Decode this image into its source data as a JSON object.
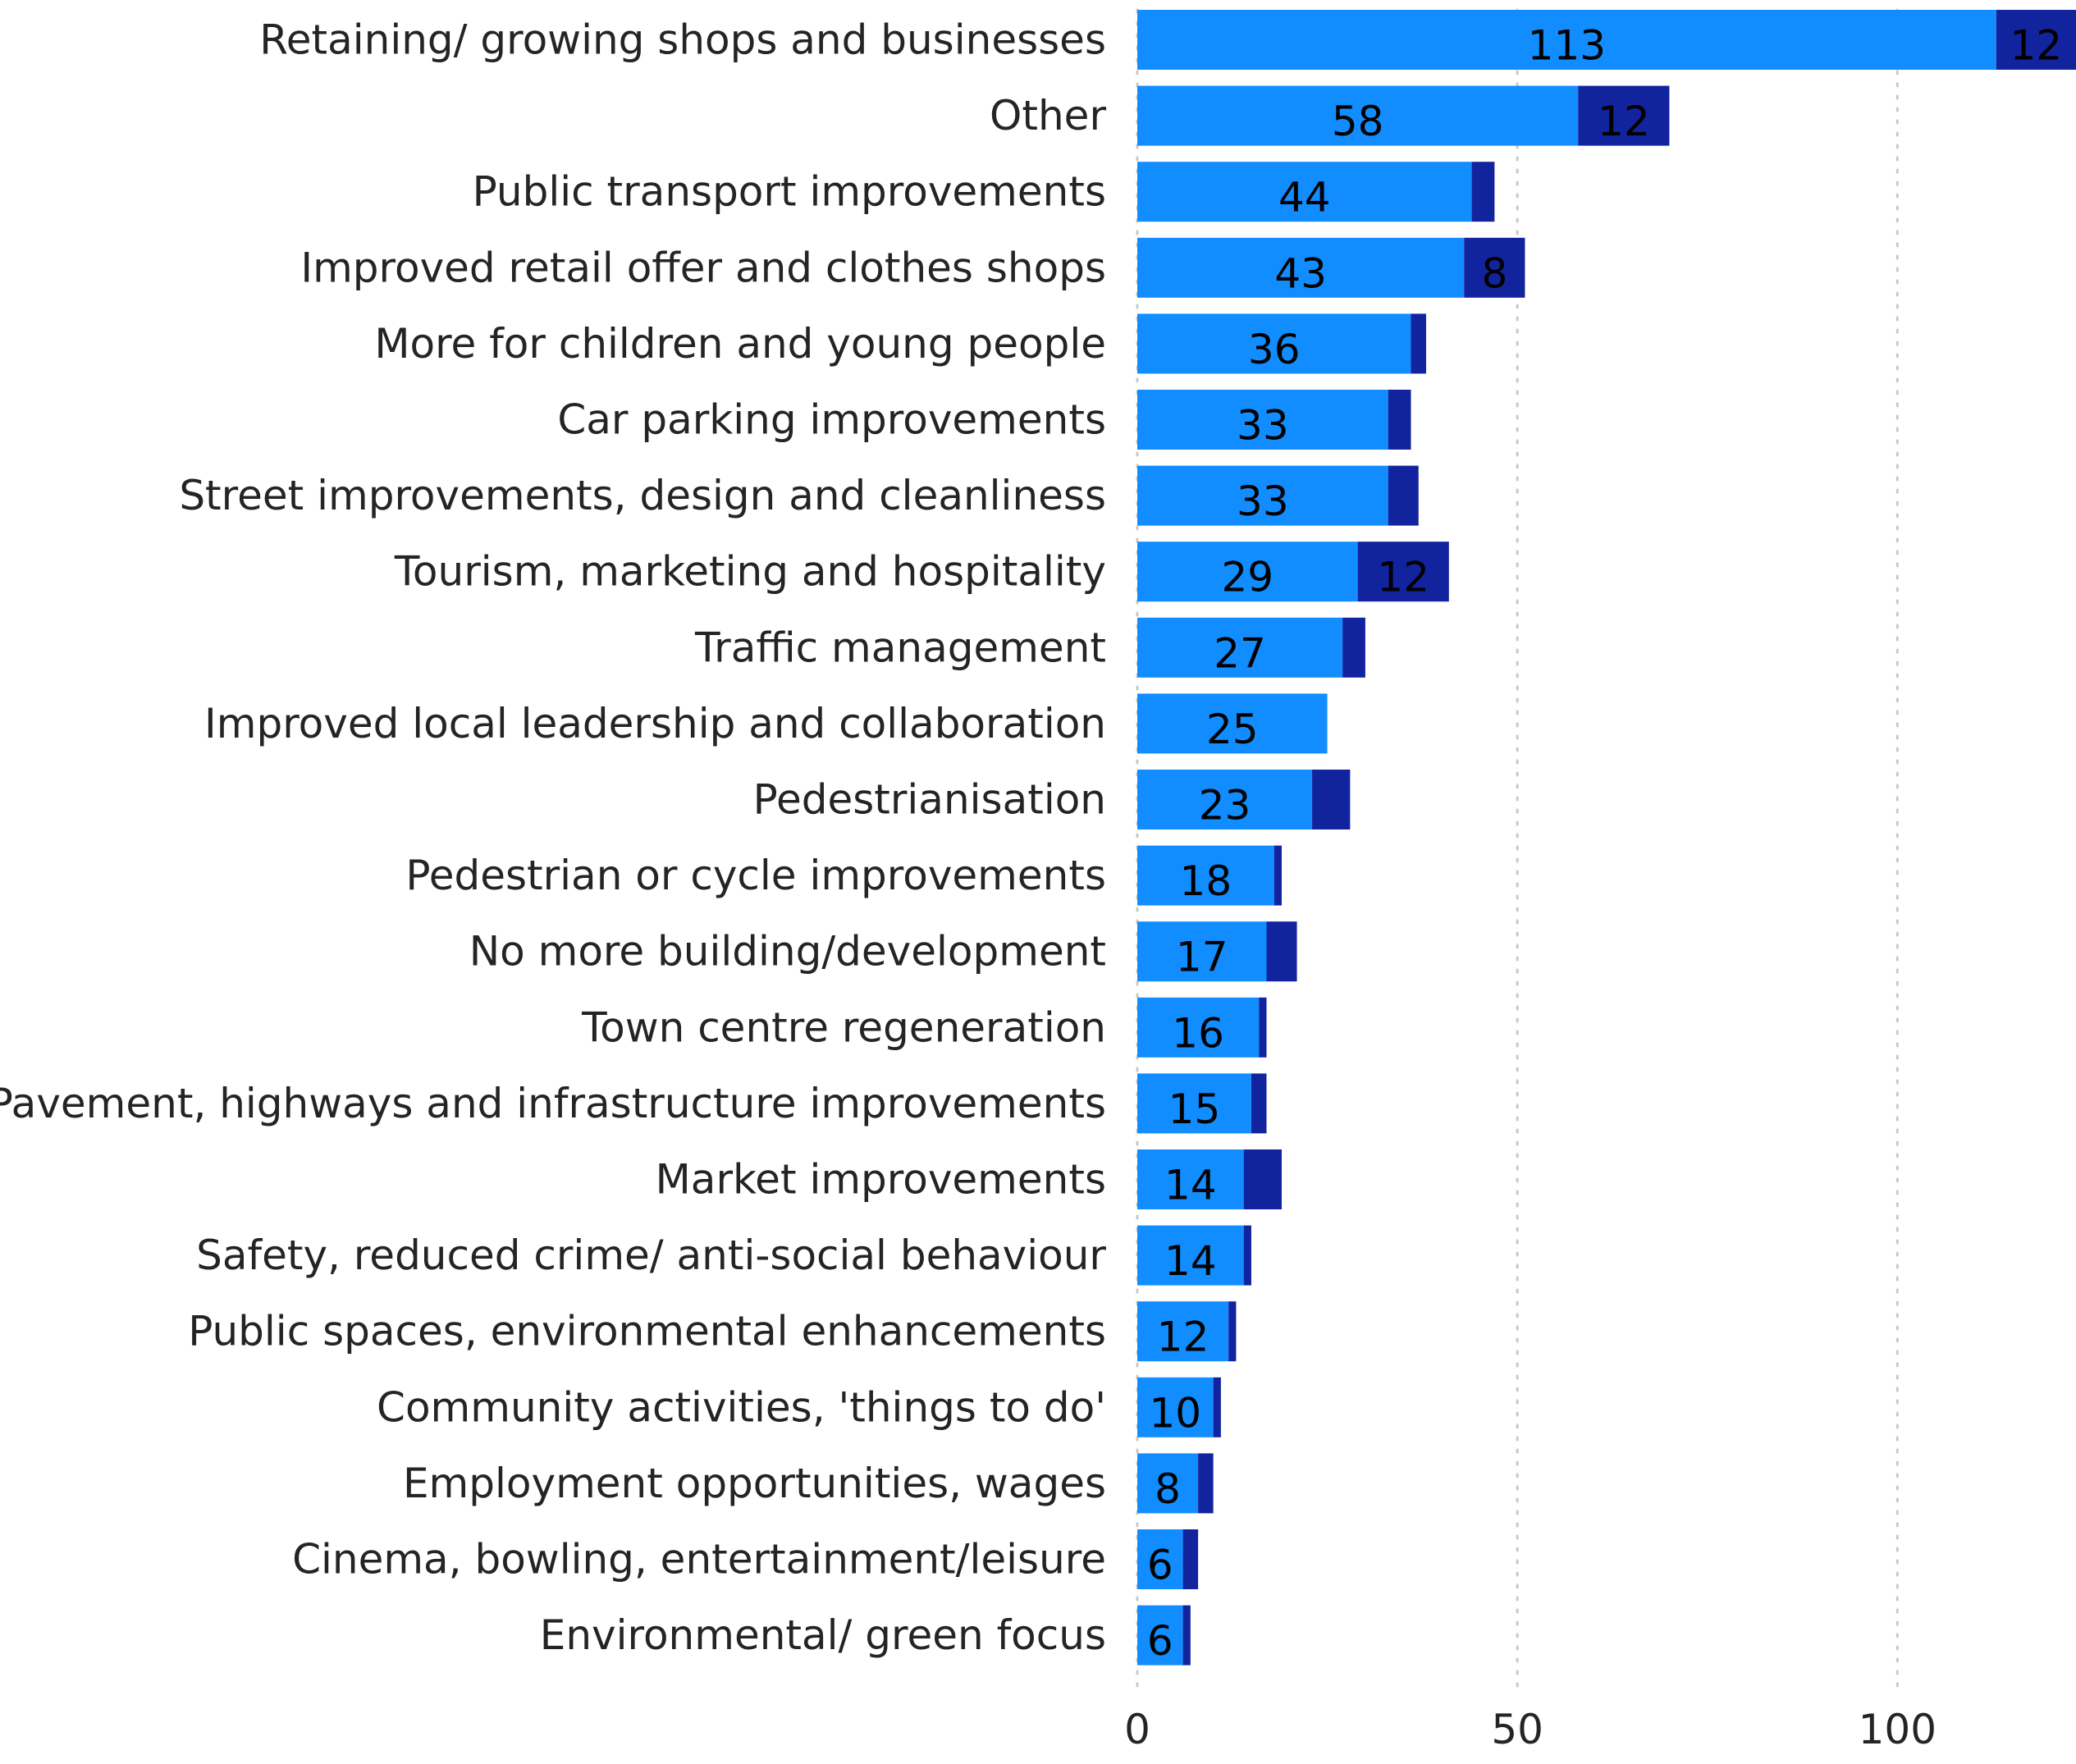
{
  "chart_data": {
    "type": "bar",
    "orientation": "horizontal",
    "stacked": true,
    "categories": [
      "Retaining/ growing shops and businesses",
      "Other",
      "Public transport improvements",
      "Improved retail offer and clothes shops",
      "More for children and young people",
      "Car parking improvements",
      "Street improvements, design and cleanliness",
      "Tourism, marketing and hospitality",
      "Traffic management",
      "Improved local leadership and collaboration",
      "Pedestrianisation",
      "Pedestrian or cycle improvements",
      "No more building/development",
      "Town centre regeneration",
      "Pavement, highways and infrastructure improvements",
      "Market improvements",
      "Safety, reduced crime/ anti-social behaviour",
      "Public spaces, environmental enhancements",
      "Community activities, 'things to do'",
      "Employment opportunities, wages",
      "Cinema, bowling, entertainment/leisure",
      "Environmental/ green focus"
    ],
    "series": [
      {
        "color": "#118DFF",
        "values": [
          113,
          58,
          44,
          43,
          36,
          33,
          33,
          29,
          27,
          25,
          23,
          18,
          17,
          16,
          15,
          14,
          14,
          12,
          10,
          8,
          6,
          6
        ],
        "labels": [
          "113",
          "58",
          "44",
          "43",
          "36",
          "33",
          "33",
          "29",
          "27",
          "25",
          "23",
          "18",
          "17",
          "16",
          "15",
          "14",
          "14",
          "12",
          "10",
          "8",
          "6",
          "6"
        ]
      },
      {
        "color": "#12239E",
        "values": [
          12,
          12,
          3,
          8,
          2,
          3,
          4,
          12,
          3,
          0,
          5,
          1,
          4,
          1,
          2,
          5,
          1,
          1,
          1,
          2,
          2,
          1
        ],
        "labels": [
          "12",
          "12",
          "",
          "8",
          "",
          "",
          "",
          "12",
          "",
          "",
          "",
          "",
          "",
          "",
          "",
          "",
          "",
          "",
          "",
          "",
          "",
          ""
        ]
      }
    ],
    "x_ticks": [
      "0",
      "50",
      "100"
    ],
    "x_tick_values": [
      0,
      50,
      100
    ],
    "xlim": [
      0,
      123.5
    ],
    "xgrid": true,
    "xlabel": "",
    "ylabel": "",
    "title": "",
    "legend": "none"
  }
}
